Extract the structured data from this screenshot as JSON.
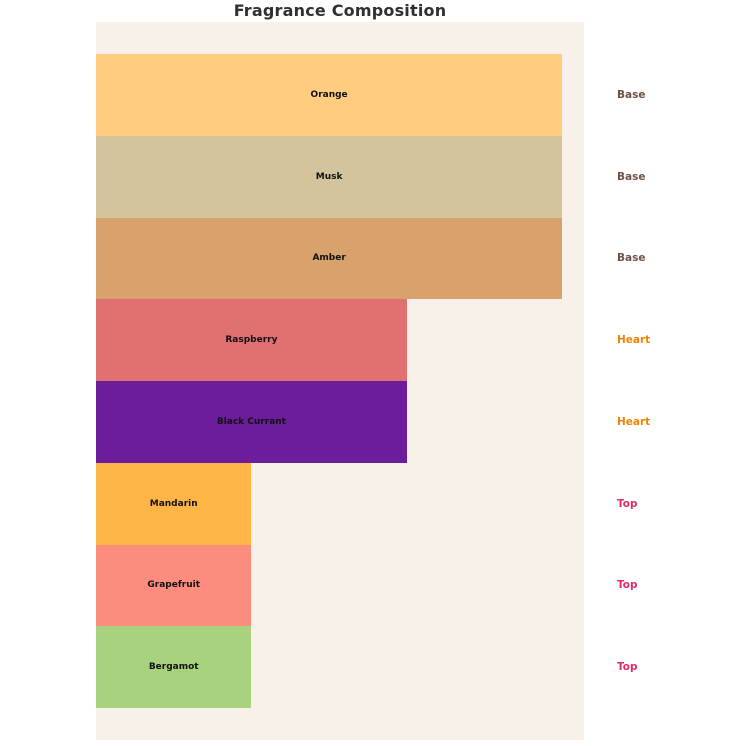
{
  "chart": {
    "title": "Fragrance Composition"
  },
  "chart_data": {
    "type": "bar",
    "orientation": "horizontal",
    "title": "Fragrance Composition",
    "xlabel": "",
    "ylabel": "",
    "xlim": [
      0,
      31.4
    ],
    "grid": false,
    "legend": false,
    "plot_background": "#F7F1EA",
    "page_background": "#FFFFFF",
    "bars": [
      {
        "label": "Orange",
        "value": 30,
        "note": "Base",
        "color": "#FFCC80"
      },
      {
        "label": "Musk",
        "value": 30,
        "note": "Base",
        "color": "#D4C49E"
      },
      {
        "label": "Amber",
        "value": 30,
        "note": "Base",
        "color": "#D9A16C"
      },
      {
        "label": "Raspberry",
        "value": 20,
        "note": "Heart",
        "color": "#E17070"
      },
      {
        "label": "Black Currant",
        "value": 20,
        "note": "Heart",
        "color": "#6C1D9C"
      },
      {
        "label": "Mandarin",
        "value": 10,
        "note": "Top",
        "color": "#FEB546"
      },
      {
        "label": "Grapefruit",
        "value": 10,
        "note": "Top",
        "color": "#FC8C7E"
      },
      {
        "label": "Bergamot",
        "value": 10,
        "note": "Top",
        "color": "#A8D27E"
      }
    ],
    "note_colors": {
      "Base": "#6F5247",
      "Heart": "#F28200",
      "Top": "#E02A6D"
    }
  }
}
